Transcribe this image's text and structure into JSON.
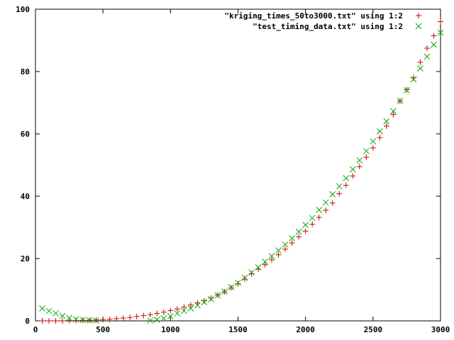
{
  "chart_data": {
    "type": "scatter",
    "xlim": [
      0,
      3000
    ],
    "ylim": [
      0,
      100
    ],
    "x_ticks": [
      0,
      500,
      1000,
      1500,
      2000,
      2500,
      3000
    ],
    "y_ticks": [
      0,
      20,
      40,
      60,
      80,
      100
    ],
    "x_tick_labels": [
      "0",
      "500",
      "1000",
      "1500",
      "2000",
      "2500",
      "3000"
    ],
    "y_tick_labels": [
      "0",
      "20",
      "40",
      "60",
      "80",
      "100"
    ],
    "grid": false,
    "legend_position": "top-right",
    "series": [
      {
        "name": "\"kriging_times_50to3000.txt\" using 1:2",
        "marker": "plus",
        "color": "#cc0000",
        "x": [
          50,
          100,
          150,
          200,
          250,
          300,
          350,
          400,
          450,
          500,
          550,
          600,
          650,
          700,
          750,
          800,
          850,
          900,
          950,
          1000,
          1050,
          1100,
          1150,
          1200,
          1250,
          1300,
          1350,
          1400,
          1450,
          1500,
          1550,
          1600,
          1650,
          1700,
          1750,
          1800,
          1850,
          1900,
          1950,
          2000,
          2050,
          2100,
          2150,
          2200,
          2250,
          2300,
          2350,
          2400,
          2450,
          2500,
          2550,
          2600,
          2650,
          2700,
          2750,
          2800,
          2850,
          2900,
          2950,
          3000
        ],
        "y": [
          0.0,
          0.0,
          0.0,
          0.0,
          0.1,
          0.1,
          0.2,
          0.2,
          0.3,
          0.4,
          0.5,
          0.7,
          0.9,
          1.1,
          1.4,
          1.7,
          2.0,
          2.4,
          2.8,
          3.3,
          3.8,
          4.4,
          5.1,
          5.8,
          6.5,
          7.3,
          8.3,
          9.3,
          10.6,
          11.9,
          13.4,
          15.1,
          16.6,
          18.0,
          19.6,
          21.2,
          23.0,
          25.0,
          27.0,
          28.8,
          31.0,
          33.2,
          35.5,
          37.8,
          40.8,
          43.5,
          46.5,
          49.5,
          52.5,
          55.5,
          58.8,
          62.5,
          66.2,
          70.5,
          74.2,
          78.0,
          83.0,
          87.5,
          91.5,
          96.0
        ]
      },
      {
        "name": "\"test_timing_data.txt\" using 1:2",
        "marker": "cross",
        "color": "#00aa00",
        "x": [
          50,
          100,
          150,
          200,
          250,
          300,
          350,
          400,
          450,
          850,
          900,
          950,
          1000,
          1050,
          1100,
          1150,
          1200,
          1250,
          1300,
          1350,
          1400,
          1450,
          1500,
          1550,
          1600,
          1650,
          1700,
          1750,
          1800,
          1850,
          1900,
          1950,
          2000,
          2050,
          2100,
          2150,
          2200,
          2250,
          2300,
          2350,
          2400,
          2450,
          2500,
          2550,
          2600,
          2650,
          2700,
          2750,
          2800,
          2850,
          2900,
          2950,
          3000
        ],
        "y": [
          4.0,
          3.2,
          2.4,
          1.6,
          0.9,
          0.5,
          0.3,
          0.2,
          0.1,
          0.1,
          0.4,
          0.8,
          1.5,
          2.4,
          3.2,
          4.0,
          5.0,
          6.0,
          7.0,
          8.2,
          9.4,
          10.8,
          12.2,
          13.8,
          15.5,
          17.2,
          19.0,
          20.8,
          22.6,
          24.5,
          26.5,
          28.6,
          30.8,
          33.0,
          35.6,
          38.0,
          40.6,
          43.2,
          45.8,
          48.6,
          51.5,
          54.5,
          57.6,
          60.8,
          64.0,
          67.3,
          70.6,
          74.0,
          77.5,
          81.0,
          84.8,
          88.6,
          92.5
        ]
      }
    ]
  }
}
